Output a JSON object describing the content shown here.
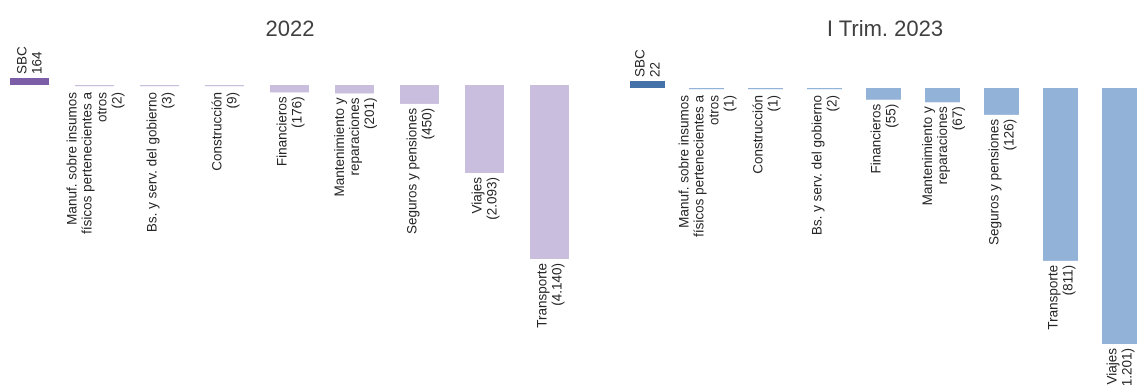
{
  "colors": {
    "panel_a_highlight": "#7b5ea7",
    "panel_a_bar": "#c9bedd",
    "panel_b_highlight": "#4472a8",
    "panel_b_bar": "#93b2d8"
  },
  "chart_data": [
    {
      "type": "bar",
      "title": "2022",
      "categories": [
        "SBC",
        "Manuf. sobre insumos físicos pertenecientes a otros",
        "Bs. y serv. del gobierno",
        "Construcción",
        "Financieros",
        "Mantenimiento y reparaciones",
        "Seguros y pensiones",
        "Viajes",
        "Transporte"
      ],
      "label_lines": [
        [
          "SBC",
          "164"
        ],
        [
          "Manuf. sobre insumos",
          "físicos pertenecientes a",
          "otros",
          "(2)"
        ],
        [
          "Bs. y serv. del gobierno",
          "(3)"
        ],
        [
          "Construcción",
          "(9)"
        ],
        [
          "Financieros",
          "(176)"
        ],
        [
          "Mantenimiento y",
          "reparaciones",
          "(201)"
        ],
        [
          "Seguros y pensiones",
          "(450)"
        ],
        [
          "Viajes",
          "(2.093)"
        ],
        [
          "Transporte",
          "(4.140)"
        ]
      ],
      "values": [
        164,
        -2,
        -3,
        -9,
        -176,
        -201,
        -450,
        -2093,
        -4140
      ]
    },
    {
      "type": "bar",
      "title": "I Trim. 2023",
      "categories": [
        "SBC",
        "Manuf. sobre insumos físicos pertenecientes a otros",
        "Construcción",
        "Bs. y serv. del gobierno",
        "Financieros",
        "Mantenimiento y reparaciones",
        "Seguros y pensiones",
        "Transporte",
        "Viajes"
      ],
      "label_lines": [
        [
          "SBC",
          "22"
        ],
        [
          "Manuf. sobre insumos",
          "físicos pertenecientes a",
          "otros",
          "(1)"
        ],
        [
          "Construcción",
          "(1)"
        ],
        [
          "Bs. y serv. del gobierno",
          "(2)"
        ],
        [
          "Financieros",
          "(55)"
        ],
        [
          "Mantenimiento y",
          "reparaciones",
          "(67)"
        ],
        [
          "Seguros y pensiones",
          "(126)"
        ],
        [
          "Transporte",
          "(811)"
        ],
        [
          "Viajes",
          "(1.201)"
        ]
      ],
      "values": [
        22,
        -1,
        -1,
        -2,
        -55,
        -67,
        -126,
        -811,
        -1201
      ]
    }
  ]
}
